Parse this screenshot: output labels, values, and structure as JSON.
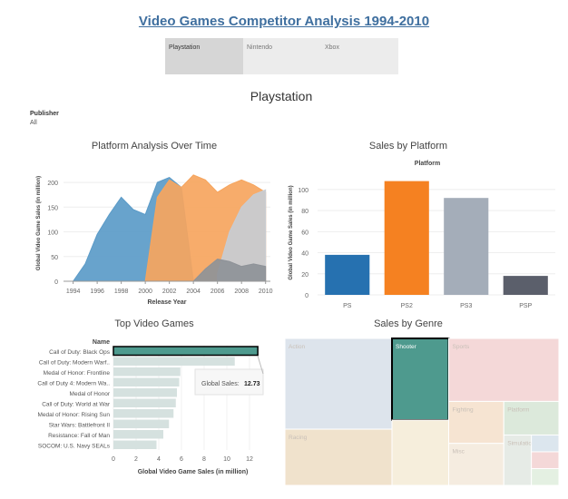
{
  "dashboard": {
    "title": "Video Games Competitor Analysis 1994-2010",
    "tabs": [
      {
        "label": "Playstation",
        "active": true
      },
      {
        "label": "Nintendo",
        "active": false
      },
      {
        "label": "Xbox",
        "active": false
      }
    ],
    "subtitle": "Playstation",
    "filter": {
      "label": "Publisher",
      "value": "All"
    }
  },
  "chart_data": [
    {
      "type": "area",
      "title": "Platform Analysis Over Time",
      "xlabel": "Release Year",
      "ylabel": "Global Video Game Sales (in million)",
      "xlim": [
        1993.2,
        2010.4
      ],
      "ylim": [
        0,
        235
      ],
      "xticks": [
        1994,
        1996,
        1998,
        2000,
        2002,
        2004,
        2006,
        2008,
        2010
      ],
      "yticks": [
        0,
        50,
        100,
        150,
        200
      ],
      "series": [
        {
          "color": "#5b9bc8",
          "x": [
            1994,
            1995,
            1996,
            1997,
            1998,
            1999,
            2000,
            2001,
            2002,
            2003,
            2004
          ],
          "y": [
            0,
            35,
            95,
            135,
            170,
            145,
            135,
            200,
            210,
            190,
            0
          ]
        },
        {
          "color": "#f6a55e",
          "x": [
            2000,
            2001,
            2002,
            2003,
            2004,
            2005,
            2006,
            2007,
            2008,
            2009,
            2010
          ],
          "y": [
            0,
            170,
            205,
            190,
            215,
            205,
            180,
            195,
            205,
            195,
            180
          ]
        },
        {
          "color": "#c7ccd4",
          "x": [
            2006,
            2007,
            2008,
            2009,
            2010
          ],
          "y": [
            15,
            100,
            150,
            175,
            185
          ]
        },
        {
          "color": "#8e9298",
          "x": [
            2004,
            2005,
            2006,
            2007,
            2008,
            2009,
            2010
          ],
          "y": [
            0,
            25,
            45,
            40,
            30,
            35,
            30
          ]
        }
      ]
    },
    {
      "type": "bar",
      "title": "Sales by Platform",
      "xlabel": "Platform",
      "ylabel": "Global Video Game Sales (in million)",
      "ylim": [
        0,
        118
      ],
      "yticks": [
        0,
        20,
        40,
        60,
        80,
        100
      ],
      "categories": [
        "PS",
        "PS2",
        "PS3",
        "PSP"
      ],
      "values": [
        38,
        108,
        92,
        18
      ],
      "colors": [
        "#2671b0",
        "#f58121",
        "#a4adb9",
        "#5b5f6b"
      ]
    },
    {
      "type": "bar",
      "orientation": "horizontal",
      "title": "Top Video Games",
      "ylabel": "Name",
      "xlabel": "Global Video Game Sales (in million)",
      "xlim": [
        0,
        14
      ],
      "xticks": [
        0,
        2,
        4,
        6,
        8,
        10,
        12
      ],
      "categories": [
        "Call of Duty: Black Ops",
        "Call of Duty: Modern Warf..",
        "Medal of Honor: Frontline",
        "Call of Duty 4: Modern Wa..",
        "Medal of Honor",
        "Call of Duty: World at War",
        "Medal of Honor: Rising Sun",
        "Star Wars: Battlefront II",
        "Resistance: Fall of Man",
        "SOCOM: U.S. Navy SEALs"
      ],
      "values": [
        12.73,
        10.7,
        5.9,
        5.8,
        5.6,
        5.5,
        5.3,
        4.9,
        4.4,
        3.8
      ],
      "highlight": 0,
      "tooltip": {
        "label": "Global Sales:",
        "value": "12.73"
      }
    },
    {
      "type": "treemap",
      "title": "Sales by Genre",
      "items": [
        {
          "name": "Action",
          "value": 21,
          "color": "#dde4ec"
        },
        {
          "name": "Racing",
          "value": 13,
          "color": "#f0e2cc"
        },
        {
          "name": "Shooter",
          "value": 10,
          "color": "#4e9a8e",
          "highlight": true
        },
        {
          "name": "",
          "value": 8,
          "color": "#f6eedc"
        },
        {
          "name": "Sports",
          "value": 15,
          "color": "#f4d8d8"
        },
        {
          "name": "Fighting",
          "value": 5,
          "color": "#f6e4d2"
        },
        {
          "name": "Misc",
          "value": 5,
          "color": "#f5ece0"
        },
        {
          "name": "Platform",
          "value": 4,
          "color": "#dce9db"
        },
        {
          "name": "Simulation",
          "value": 3,
          "color": "#e6ebe6"
        },
        {
          "name": "",
          "value": 1,
          "color": "#dce6ee"
        },
        {
          "name": "",
          "value": 1,
          "color": "#f4d8d8"
        },
        {
          "name": "",
          "value": 1,
          "color": "#e4f0e2"
        }
      ]
    }
  ]
}
